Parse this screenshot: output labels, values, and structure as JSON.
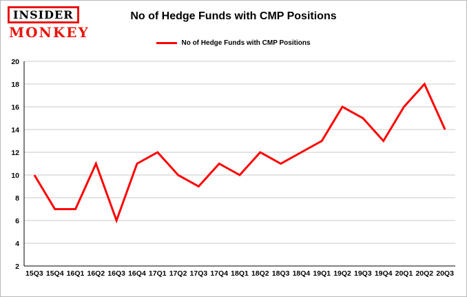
{
  "header": {
    "logo": {
      "line1": "INSIDER",
      "line2": "MONKEY"
    },
    "title": "No of Hedge Funds with CMP Positions"
  },
  "legend": {
    "label": "No of Hedge Funds with CMP Positions",
    "color": "#ff0000"
  },
  "chart_data": {
    "type": "line",
    "title": "No of Hedge Funds with CMP Positions",
    "categories": [
      "15Q3",
      "15Q4",
      "16Q1",
      "16Q2",
      "16Q3",
      "16Q4",
      "17Q1",
      "17Q2",
      "17Q3",
      "17Q4",
      "18Q1",
      "18Q2",
      "18Q3",
      "18Q4",
      "19Q1",
      "19Q2",
      "19Q3",
      "19Q4",
      "20Q1",
      "20Q2",
      "20Q3"
    ],
    "values": [
      10,
      7,
      7,
      11,
      6,
      11,
      12,
      10,
      9,
      11,
      10,
      12,
      11,
      12,
      13,
      16,
      15,
      13,
      16,
      18,
      14
    ],
    "xlabel": "",
    "ylabel": "",
    "ylim": [
      2,
      20
    ],
    "ytick_step": 2,
    "grid": true,
    "legend_position": "top",
    "series_color": "#ff0000",
    "grid_color": "#c9c9c9",
    "axis_color": "#000000"
  }
}
